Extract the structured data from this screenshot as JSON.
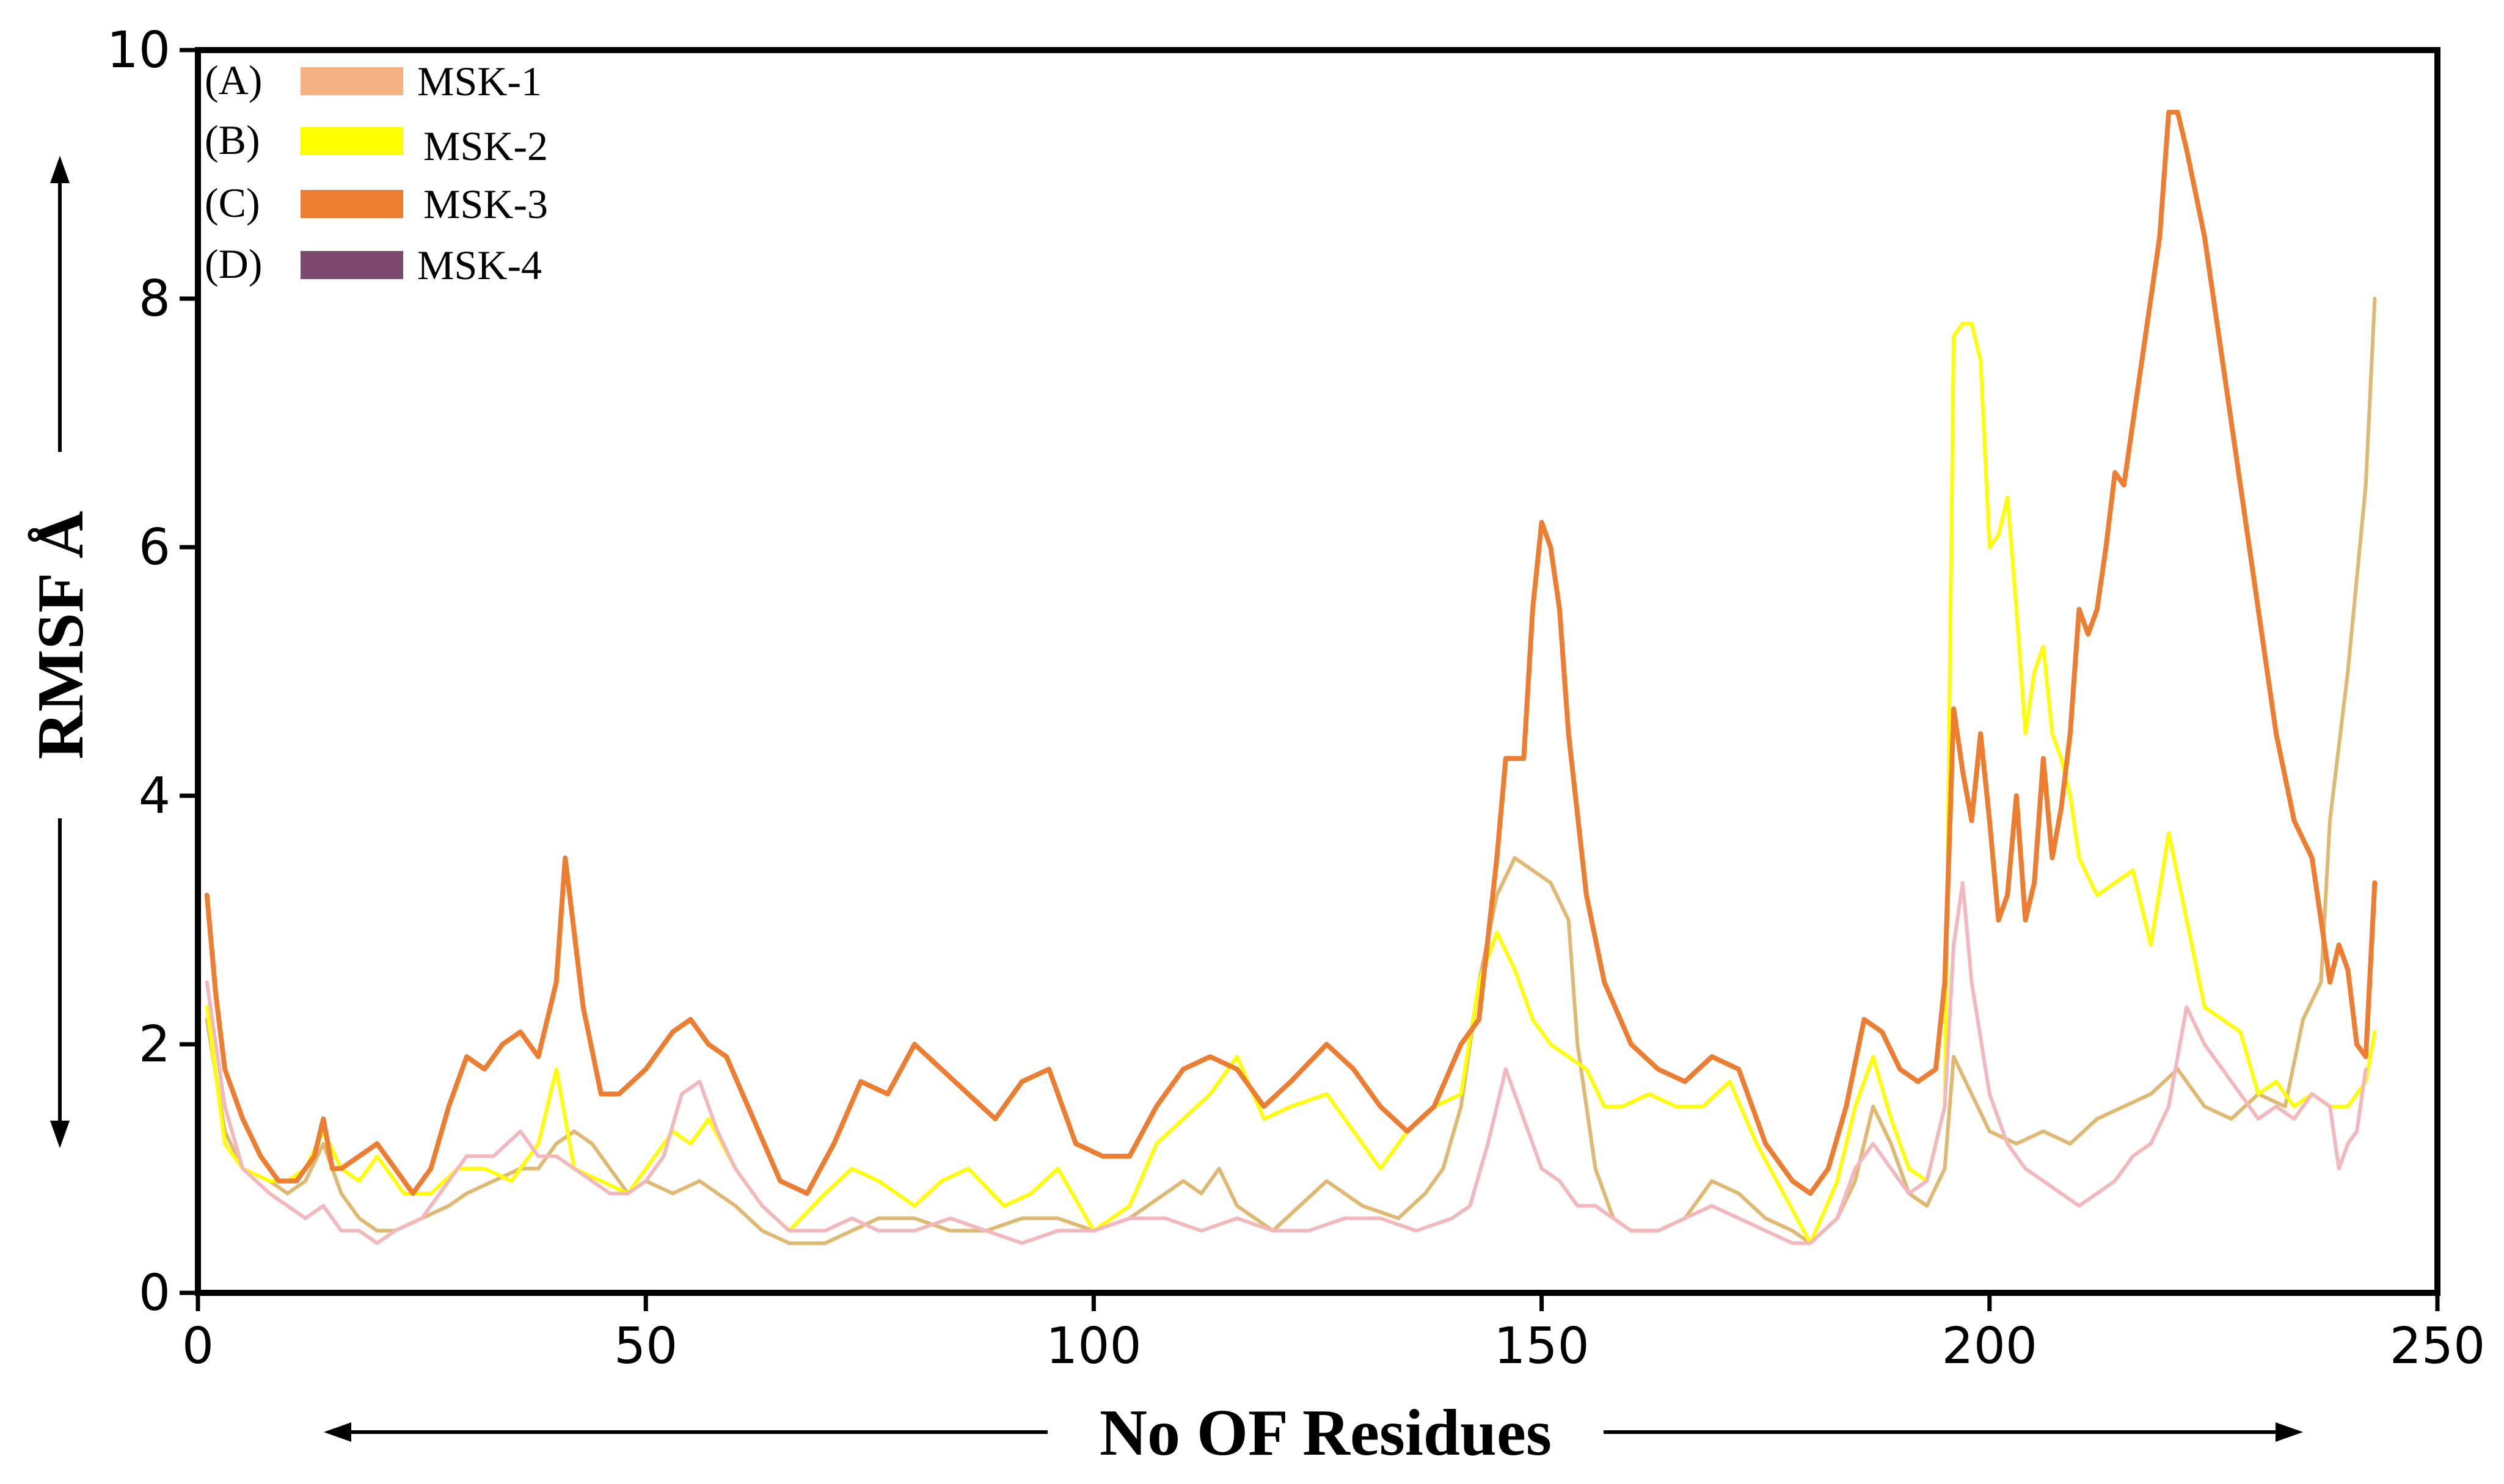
{
  "chart_data": {
    "type": "line",
    "xlabel": "No OF Residues",
    "ylabel": "RMSF Å",
    "xlim": [
      0,
      250
    ],
    "ylim": [
      0,
      10
    ],
    "x_ticks": [
      "0",
      "50",
      "100",
      "150",
      "200",
      "250"
    ],
    "y_ticks": [
      "0",
      "2",
      "4",
      "6",
      "8",
      "10"
    ],
    "grid": false,
    "legend_position": "top-left",
    "legend": [
      {
        "prefix": "(A)",
        "label": "MSK-1",
        "color": "#f4b183"
      },
      {
        "prefix": "(B)",
        "label": "MSK-2",
        "color": "#ffff00"
      },
      {
        "prefix": "(C)",
        "label": "MSK-3",
        "color": "#ed7d31"
      },
      {
        "prefix": "(D)",
        "label": "MSK-4",
        "color": "#7b4a6e"
      }
    ],
    "series": [
      {
        "name": "MSK-1",
        "color": "#dfb872",
        "x": [
          1,
          3,
          5,
          8,
          10,
          12,
          14,
          16,
          18,
          20,
          22,
          25,
          28,
          30,
          33,
          36,
          38,
          40,
          42,
          44,
          46,
          48,
          50,
          53,
          56,
          58,
          60,
          63,
          66,
          70,
          73,
          76,
          80,
          84,
          88,
          92,
          96,
          100,
          104,
          108,
          110,
          112,
          114,
          116,
          118,
          120,
          123,
          126,
          130,
          134,
          137,
          139,
          141,
          143,
          145,
          147,
          149,
          151,
          153,
          154,
          156,
          158,
          160,
          163,
          166,
          169,
          172,
          175,
          178,
          180,
          183,
          185,
          187,
          189,
          191,
          193,
          195,
          196,
          198,
          200,
          203,
          206,
          209,
          212,
          215,
          218,
          221,
          224,
          227,
          230,
          233,
          235,
          237,
          238,
          240,
          242,
          243
        ],
        "values": [
          2.2,
          1.3,
          1.0,
          0.9,
          0.8,
          0.9,
          1.2,
          0.8,
          0.6,
          0.5,
          0.5,
          0.6,
          0.7,
          0.8,
          0.9,
          1.0,
          1.0,
          1.2,
          1.3,
          1.2,
          1.0,
          0.8,
          0.9,
          0.8,
          0.9,
          0.8,
          0.7,
          0.5,
          0.4,
          0.4,
          0.5,
          0.6,
          0.6,
          0.5,
          0.5,
          0.6,
          0.6,
          0.5,
          0.6,
          0.8,
          0.9,
          0.8,
          1.0,
          0.7,
          0.6,
          0.5,
          0.7,
          0.9,
          0.7,
          0.6,
          0.8,
          1.0,
          1.5,
          2.5,
          3.2,
          3.5,
          3.4,
          3.3,
          3.0,
          2.0,
          1.0,
          0.6,
          0.5,
          0.5,
          0.6,
          0.9,
          0.8,
          0.6,
          0.5,
          0.4,
          0.6,
          0.9,
          1.5,
          1.2,
          0.8,
          0.7,
          1.0,
          1.9,
          1.6,
          1.3,
          1.2,
          1.3,
          1.2,
          1.4,
          1.5,
          1.6,
          1.8,
          1.5,
          1.4,
          1.6,
          1.5,
          2.2,
          2.5,
          3.8,
          5.0,
          6.5,
          8.0
        ]
      },
      {
        "name": "MSK-2",
        "color": "#ffff00",
        "x": [
          1,
          3,
          5,
          8,
          10,
          12,
          14,
          16,
          18,
          20,
          23,
          26,
          29,
          32,
          35,
          38,
          40,
          42,
          45,
          48,
          50,
          53,
          55,
          57,
          60,
          63,
          66,
          70,
          73,
          76,
          80,
          83,
          86,
          90,
          93,
          96,
          100,
          104,
          107,
          110,
          113,
          116,
          119,
          122,
          126,
          129,
          132,
          135,
          138,
          141,
          143,
          145,
          147,
          149,
          151,
          153,
          155,
          157,
          159,
          162,
          165,
          168,
          171,
          174,
          177,
          180,
          183,
          185,
          187,
          189,
          191,
          193,
          195,
          196,
          197,
          198,
          199,
          200,
          201,
          202,
          203,
          204,
          205,
          206,
          207,
          208,
          209,
          210,
          212,
          214,
          216,
          218,
          220,
          222,
          224,
          226,
          228,
          230,
          232,
          234,
          236,
          238,
          240,
          242,
          243
        ],
        "values": [
          2.3,
          1.2,
          1.0,
          0.9,
          0.9,
          1.0,
          1.3,
          1.0,
          0.9,
          1.1,
          0.8,
          0.8,
          1.0,
          1.0,
          0.9,
          1.2,
          1.8,
          1.0,
          0.9,
          0.8,
          1.0,
          1.3,
          1.2,
          1.4,
          1.0,
          0.7,
          0.5,
          0.8,
          1.0,
          0.9,
          0.7,
          0.9,
          1.0,
          0.7,
          0.8,
          1.0,
          0.5,
          0.7,
          1.2,
          1.4,
          1.6,
          1.9,
          1.4,
          1.5,
          1.6,
          1.3,
          1.0,
          1.3,
          1.5,
          1.6,
          2.5,
          2.9,
          2.6,
          2.2,
          2.0,
          1.9,
          1.8,
          1.5,
          1.5,
          1.6,
          1.5,
          1.5,
          1.7,
          1.2,
          0.8,
          0.4,
          0.9,
          1.5,
          1.9,
          1.4,
          1.0,
          0.9,
          1.5,
          7.7,
          7.8,
          7.8,
          7.5,
          6.0,
          6.1,
          6.4,
          5.5,
          4.5,
          5.0,
          5.2,
          4.5,
          4.3,
          4.0,
          3.5,
          3.2,
          3.3,
          3.4,
          2.8,
          3.7,
          3.0,
          2.3,
          2.2,
          2.1,
          1.6,
          1.7,
          1.5,
          1.6,
          1.5,
          1.5,
          1.7,
          2.1
        ]
      },
      {
        "name": "MSK-3",
        "color": "#ed7d31",
        "x": [
          1,
          2,
          3,
          5,
          7,
          9,
          11,
          13,
          14,
          15,
          16,
          18,
          20,
          22,
          24,
          26,
          28,
          30,
          32,
          34,
          36,
          38,
          40,
          41,
          42,
          43,
          45,
          47,
          50,
          53,
          55,
          57,
          59,
          62,
          65,
          68,
          71,
          74,
          77,
          80,
          83,
          86,
          89,
          92,
          95,
          98,
          101,
          104,
          107,
          110,
          113,
          116,
          119,
          122,
          126,
          129,
          132,
          135,
          138,
          141,
          143,
          145,
          146,
          147,
          148,
          149,
          150,
          151,
          152,
          153,
          155,
          157,
          160,
          163,
          166,
          169,
          172,
          175,
          178,
          180,
          182,
          184,
          186,
          188,
          190,
          192,
          194,
          195,
          196,
          197,
          198,
          199,
          200,
          201,
          202,
          203,
          204,
          205,
          206,
          207,
          208,
          209,
          210,
          211,
          212,
          213,
          214,
          215,
          216,
          217,
          218,
          219,
          220,
          221,
          222,
          224,
          226,
          228,
          230,
          232,
          234,
          236,
          237,
          238,
          239,
          240,
          241,
          242,
          243
        ],
        "values": [
          3.2,
          2.4,
          1.8,
          1.4,
          1.1,
          0.9,
          0.9,
          1.1,
          1.4,
          1.0,
          1.0,
          1.1,
          1.2,
          1.0,
          0.8,
          1.0,
          1.5,
          1.9,
          1.8,
          2.0,
          2.1,
          1.9,
          2.5,
          3.5,
          2.9,
          2.3,
          1.6,
          1.6,
          1.8,
          2.1,
          2.2,
          2.0,
          1.9,
          1.4,
          0.9,
          0.8,
          1.2,
          1.7,
          1.6,
          2.0,
          1.8,
          1.6,
          1.4,
          1.7,
          1.8,
          1.2,
          1.1,
          1.1,
          1.5,
          1.8,
          1.9,
          1.8,
          1.5,
          1.7,
          2.0,
          1.8,
          1.5,
          1.3,
          1.5,
          2.0,
          2.2,
          3.5,
          4.3,
          4.3,
          4.3,
          5.5,
          6.2,
          6.0,
          5.5,
          4.5,
          3.2,
          2.5,
          2.0,
          1.8,
          1.7,
          1.9,
          1.8,
          1.2,
          0.9,
          0.8,
          1.0,
          1.5,
          2.2,
          2.1,
          1.8,
          1.7,
          1.8,
          2.5,
          4.7,
          4.2,
          3.8,
          4.5,
          3.8,
          3.0,
          3.2,
          4.0,
          3.0,
          3.3,
          4.3,
          3.5,
          3.9,
          4.5,
          5.5,
          5.3,
          5.5,
          6.0,
          6.6,
          6.5,
          7.0,
          7.5,
          8.0,
          8.5,
          9.5,
          9.5,
          9.2,
          8.5,
          7.5,
          6.5,
          5.5,
          4.5,
          3.8,
          3.5,
          3.0,
          2.5,
          2.8,
          2.6,
          2.0,
          1.9,
          3.3
        ]
      },
      {
        "name": "MSK-4",
        "color": "#f2b8bd",
        "x": [
          1,
          3,
          5,
          8,
          10,
          12,
          14,
          16,
          18,
          20,
          22,
          25,
          28,
          30,
          33,
          36,
          38,
          40,
          42,
          44,
          46,
          48,
          50,
          52,
          54,
          56,
          58,
          60,
          63,
          66,
          70,
          73,
          76,
          80,
          84,
          88,
          92,
          96,
          100,
          104,
          108,
          112,
          116,
          120,
          124,
          128,
          132,
          136,
          140,
          142,
          144,
          145,
          146,
          148,
          150,
          152,
          154,
          156,
          158,
          160,
          163,
          166,
          169,
          172,
          175,
          178,
          180,
          183,
          185,
          187,
          189,
          191,
          193,
          195,
          196,
          197,
          198,
          200,
          202,
          204,
          206,
          208,
          210,
          212,
          214,
          216,
          218,
          220,
          222,
          224,
          226,
          228,
          230,
          232,
          234,
          236,
          238,
          239,
          240,
          241,
          242
        ],
        "values": [
          2.5,
          1.5,
          1.0,
          0.8,
          0.7,
          0.6,
          0.7,
          0.5,
          0.5,
          0.4,
          0.5,
          0.6,
          0.9,
          1.1,
          1.1,
          1.3,
          1.1,
          1.1,
          1.0,
          0.9,
          0.8,
          0.8,
          0.9,
          1.1,
          1.6,
          1.7,
          1.3,
          1.0,
          0.7,
          0.5,
          0.5,
          0.6,
          0.5,
          0.5,
          0.6,
          0.5,
          0.4,
          0.5,
          0.5,
          0.6,
          0.6,
          0.5,
          0.6,
          0.5,
          0.5,
          0.6,
          0.6,
          0.5,
          0.6,
          0.7,
          1.2,
          1.5,
          1.8,
          1.4,
          1.0,
          0.9,
          0.7,
          0.7,
          0.6,
          0.5,
          0.5,
          0.6,
          0.7,
          0.6,
          0.5,
          0.4,
          0.4,
          0.6,
          1.0,
          1.2,
          1.0,
          0.8,
          0.9,
          1.5,
          2.8,
          3.3,
          2.5,
          1.6,
          1.2,
          1.0,
          0.9,
          0.8,
          0.7,
          0.8,
          0.9,
          1.1,
          1.2,
          1.5,
          2.3,
          2.0,
          1.8,
          1.6,
          1.4,
          1.5,
          1.4,
          1.6,
          1.5,
          1.0,
          1.2,
          1.3,
          1.8
        ]
      }
    ]
  }
}
